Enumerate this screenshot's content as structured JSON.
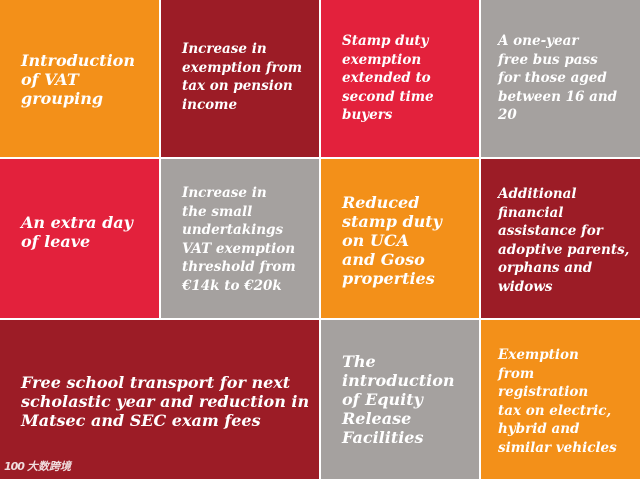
{
  "tiles": [
    {
      "text": "Introduction\nof VAT\ngrouping",
      "color": "#f39019"
    },
    {
      "text": "Increase in\nexemption from\ntax on pension\nincome",
      "color": "#9c1c26"
    },
    {
      "text": "Stamp duty\nexemption\nextended to\nsecond time\nbuyers",
      "color": "#e3213c"
    },
    {
      "text": "A one-year\nfree bus pass\nfor those aged\nbetween 16 and\n20",
      "color": "#a5a19f"
    },
    {
      "text": "An extra day\nof leave",
      "color": "#e3213c"
    },
    {
      "text": "Increase in\nthe small\nundertakings\nVAT exemption\nthreshold from\n€14k to €20k",
      "color": "#a5a19f"
    },
    {
      "text": "Reduced\nstamp duty\non UCA\nand Goso\nproperties",
      "color": "#f39019"
    },
    {
      "text": "Additional\nfinancial\nassistance for\nadoptive parents,\norphans and\nwidows",
      "color": "#9c1c26"
    },
    {
      "text": "Free school transport for next\nscholastic year and reduction in\nMatsec and SEC exam fees",
      "color": "#9c1c26"
    },
    {
      "text": "The\nintroduction\nof Equity\nRelease\nFacilities",
      "color": "#a5a19f"
    },
    {
      "text": "Exemption\nfrom\nregistration\ntax on electric,\nhybrid and\nsimilar vehicles",
      "color": "#f39019"
    }
  ],
  "watermark": {
    "logo": "100",
    "text": "大数跨境"
  }
}
